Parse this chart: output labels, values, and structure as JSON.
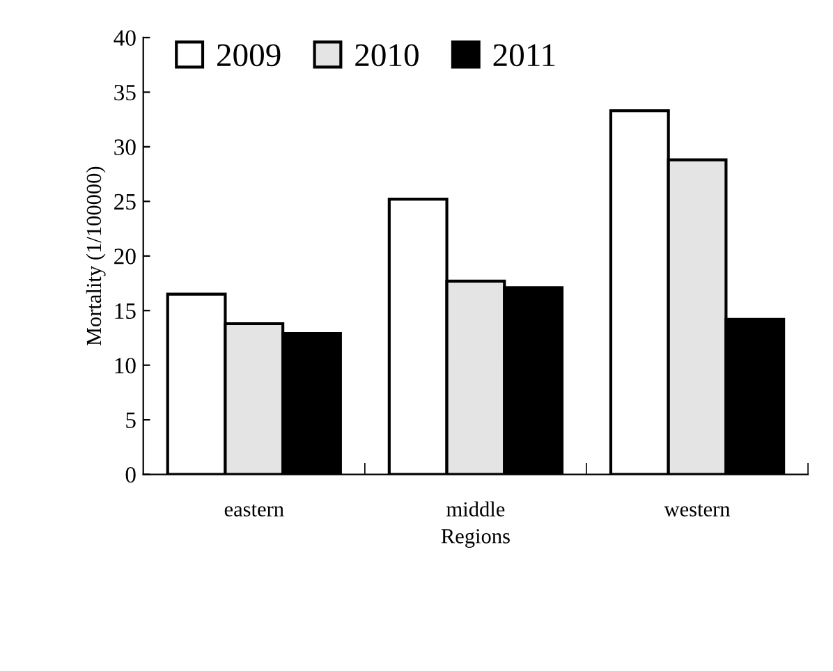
{
  "chart_data": {
    "type": "bar",
    "xlabel": "Regions",
    "ylabel": "Mortality (1/100000)",
    "categories": [
      "eastern",
      "middle",
      "western"
    ],
    "series": [
      {
        "name": "2009",
        "color": "#ffffff",
        "values": [
          16.5,
          25.2,
          33.3
        ]
      },
      {
        "name": "2010",
        "color": "#e4e4e4",
        "values": [
          13.8,
          17.7,
          28.8
        ]
      },
      {
        "name": "2011",
        "color": "#000000",
        "values": [
          12.9,
          17.1,
          14.2
        ]
      }
    ],
    "ylim": [
      0,
      40
    ],
    "yticks": [
      0,
      5,
      10,
      15,
      20,
      25,
      30,
      35,
      40
    ],
    "grid": false,
    "legend": "top left"
  }
}
